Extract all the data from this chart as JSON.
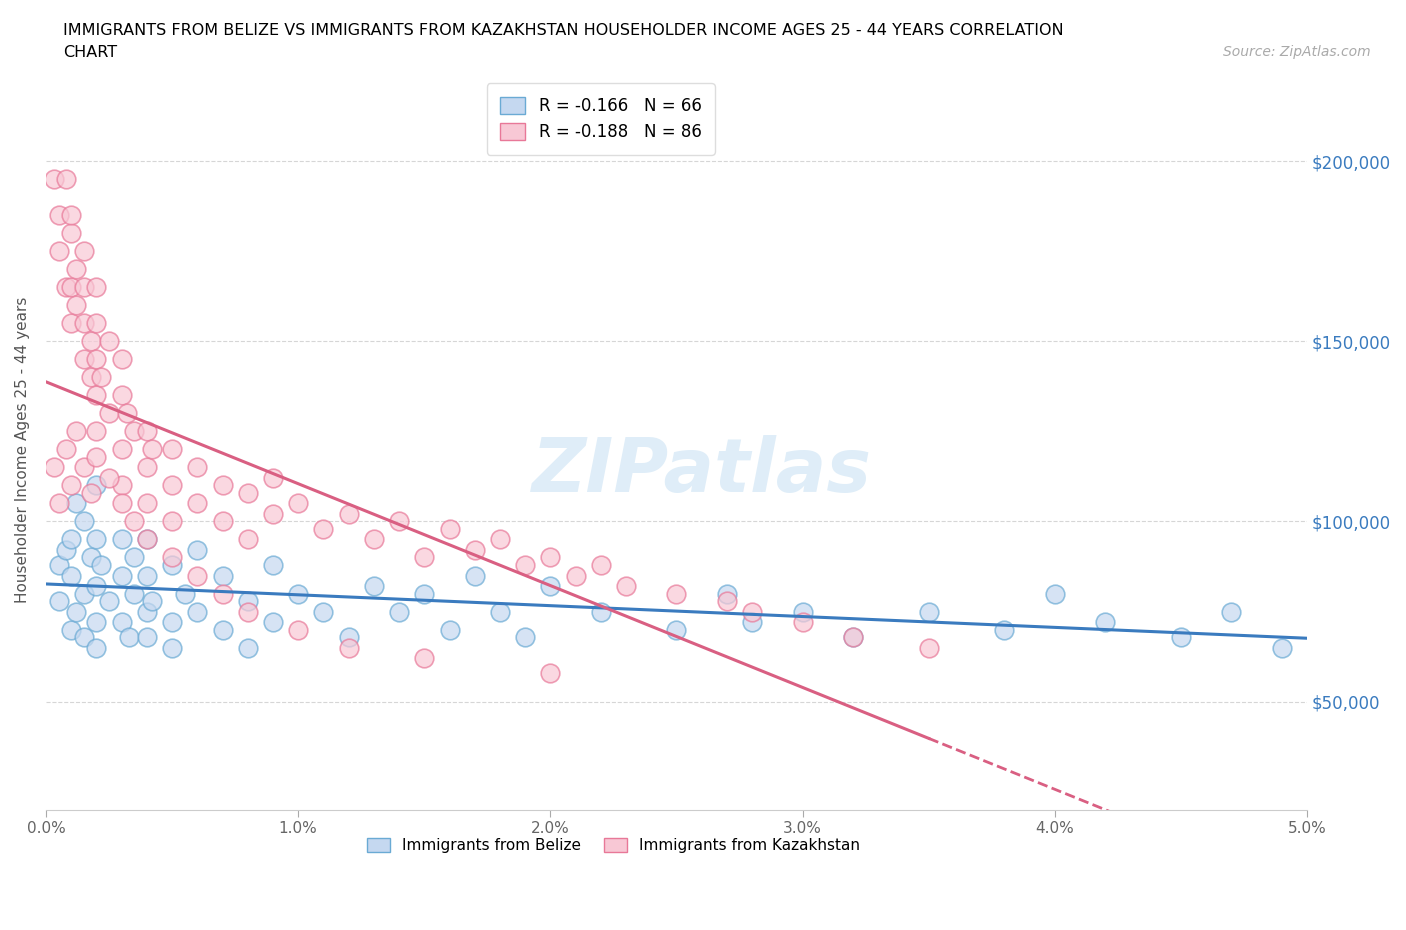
{
  "title_line1": "IMMIGRANTS FROM BELIZE VS IMMIGRANTS FROM KAZAKHSTAN HOUSEHOLDER INCOME AGES 25 - 44 YEARS CORRELATION",
  "title_line2": "CHART",
  "source_text": "Source: ZipAtlas.com",
  "ylabel": "Householder Income Ages 25 - 44 years",
  "legend_label_1": "Immigrants from Belize",
  "legend_label_2": "Immigrants from Kazakhstan",
  "R1": -0.166,
  "N1": 66,
  "R2": -0.188,
  "N2": 86,
  "color_belize_fill": "#c5d8f0",
  "color_belize_edge": "#6aaad4",
  "color_kazakhstan_fill": "#f8c8d5",
  "color_kazakhstan_edge": "#e87898",
  "color_line_belize": "#3a7bbf",
  "color_line_kazakhstan": "#d95f82",
  "watermark": "ZIPatlas",
  "xlim": [
    0.0,
    0.05
  ],
  "ylim": [
    20000,
    220000
  ],
  "yticks": [
    50000,
    100000,
    150000,
    200000
  ],
  "ytick_labels": [
    "$50,000",
    "$100,000",
    "$150,000",
    "$200,000"
  ],
  "xticks": [
    0.0,
    0.01,
    0.02,
    0.03,
    0.04,
    0.05
  ],
  "xtick_labels": [
    "0.0%",
    "1.0%",
    "2.0%",
    "3.0%",
    "4.0%",
    "5.0%"
  ],
  "belize_x": [
    0.0005,
    0.0005,
    0.0008,
    0.001,
    0.001,
    0.001,
    0.0012,
    0.0012,
    0.0015,
    0.0015,
    0.0015,
    0.0018,
    0.002,
    0.002,
    0.002,
    0.002,
    0.002,
    0.0022,
    0.0025,
    0.003,
    0.003,
    0.003,
    0.0033,
    0.0035,
    0.0035,
    0.004,
    0.004,
    0.004,
    0.004,
    0.0042,
    0.005,
    0.005,
    0.005,
    0.0055,
    0.006,
    0.006,
    0.007,
    0.007,
    0.008,
    0.008,
    0.009,
    0.009,
    0.01,
    0.011,
    0.012,
    0.013,
    0.014,
    0.015,
    0.016,
    0.017,
    0.018,
    0.019,
    0.02,
    0.022,
    0.025,
    0.027,
    0.028,
    0.03,
    0.032,
    0.035,
    0.038,
    0.04,
    0.042,
    0.045,
    0.047,
    0.049
  ],
  "belize_y": [
    88000,
    78000,
    92000,
    85000,
    70000,
    95000,
    75000,
    105000,
    80000,
    68000,
    100000,
    90000,
    72000,
    82000,
    95000,
    65000,
    110000,
    88000,
    78000,
    85000,
    72000,
    95000,
    68000,
    80000,
    90000,
    75000,
    85000,
    68000,
    95000,
    78000,
    72000,
    88000,
    65000,
    80000,
    75000,
    92000,
    70000,
    85000,
    78000,
    65000,
    88000,
    72000,
    80000,
    75000,
    68000,
    82000,
    75000,
    80000,
    70000,
    85000,
    75000,
    68000,
    82000,
    75000,
    70000,
    80000,
    72000,
    75000,
    68000,
    75000,
    70000,
    80000,
    72000,
    68000,
    75000,
    65000
  ],
  "kazakhstan_x": [
    0.0003,
    0.0005,
    0.0005,
    0.0008,
    0.0008,
    0.001,
    0.001,
    0.001,
    0.001,
    0.0012,
    0.0012,
    0.0015,
    0.0015,
    0.0015,
    0.0015,
    0.0018,
    0.0018,
    0.002,
    0.002,
    0.002,
    0.002,
    0.002,
    0.0022,
    0.0025,
    0.0025,
    0.003,
    0.003,
    0.003,
    0.003,
    0.0032,
    0.0035,
    0.004,
    0.004,
    0.004,
    0.0042,
    0.005,
    0.005,
    0.005,
    0.006,
    0.006,
    0.007,
    0.007,
    0.008,
    0.008,
    0.009,
    0.009,
    0.01,
    0.011,
    0.012,
    0.013,
    0.014,
    0.015,
    0.016,
    0.017,
    0.018,
    0.019,
    0.02,
    0.021,
    0.022,
    0.023,
    0.025,
    0.027,
    0.028,
    0.03,
    0.032,
    0.035,
    0.0003,
    0.0005,
    0.0008,
    0.001,
    0.0012,
    0.0015,
    0.0018,
    0.002,
    0.0025,
    0.003,
    0.0035,
    0.004,
    0.005,
    0.006,
    0.007,
    0.008,
    0.01,
    0.012,
    0.015,
    0.02
  ],
  "kazakhstan_y": [
    195000,
    185000,
    175000,
    195000,
    165000,
    180000,
    165000,
    155000,
    185000,
    170000,
    160000,
    155000,
    145000,
    165000,
    175000,
    150000,
    140000,
    145000,
    135000,
    155000,
    165000,
    125000,
    140000,
    150000,
    130000,
    135000,
    120000,
    145000,
    110000,
    130000,
    125000,
    115000,
    125000,
    105000,
    120000,
    110000,
    120000,
    100000,
    115000,
    105000,
    110000,
    100000,
    108000,
    95000,
    112000,
    102000,
    105000,
    98000,
    102000,
    95000,
    100000,
    90000,
    98000,
    92000,
    95000,
    88000,
    90000,
    85000,
    88000,
    82000,
    80000,
    78000,
    75000,
    72000,
    68000,
    65000,
    115000,
    105000,
    120000,
    110000,
    125000,
    115000,
    108000,
    118000,
    112000,
    105000,
    100000,
    95000,
    90000,
    85000,
    80000,
    75000,
    70000,
    65000,
    62000,
    58000
  ]
}
